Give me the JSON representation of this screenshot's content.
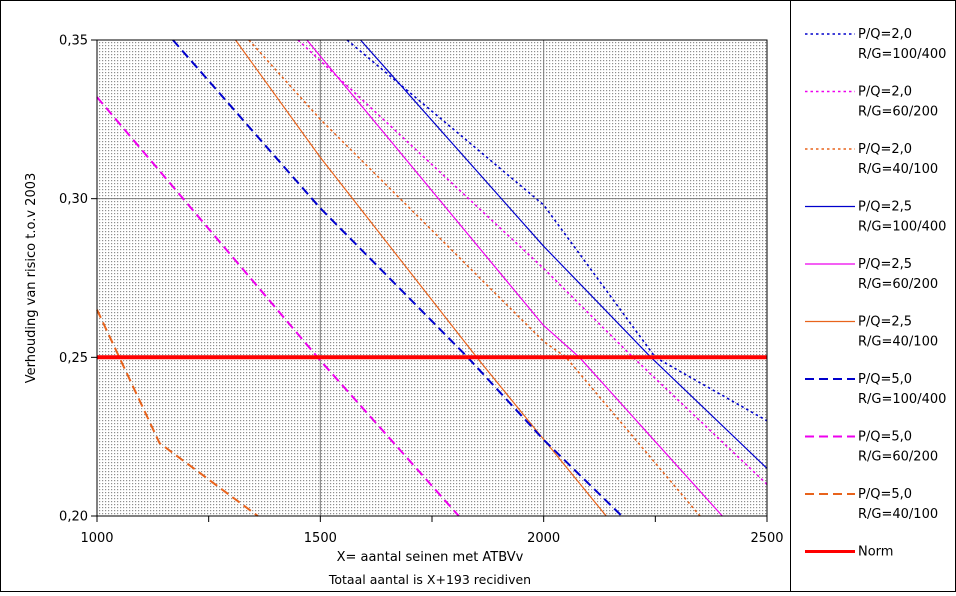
{
  "chart_data": {
    "type": "line",
    "ylabel": "Verhouding van risico t.o.v 2003",
    "xlabel": "X= aantal seinen met ATBVv",
    "xlabel2": "Totaal aantal is X+193 recidiven",
    "xlim": [
      1000,
      2500
    ],
    "ylim": [
      0.2,
      0.35
    ],
    "x_ticks": [
      "1000",
      "1500",
      "2000",
      "2500"
    ],
    "y_ticks": [
      "0,20",
      "0,25",
      "0,30",
      "0,35"
    ],
    "x_minor_ticks": [
      1250,
      1750,
      2250
    ],
    "grid": true,
    "plot_background": "#d9d9d9",
    "legend_position": "right",
    "series": [
      {
        "legend": [
          "P/Q=2,0",
          "R/G=100/400"
        ],
        "color": "#0000cc",
        "dash": "dot",
        "width": 1.6,
        "points": [
          [
            1560,
            0.35
          ],
          [
            2000,
            0.298
          ],
          [
            2250,
            0.25
          ],
          [
            2500,
            0.23
          ]
        ]
      },
      {
        "legend": [
          "P/Q=2,0",
          "R/G=60/200"
        ],
        "color": "#ee00ee",
        "dash": "dot",
        "width": 1.6,
        "points": [
          [
            1450,
            0.35
          ],
          [
            2000,
            0.278
          ],
          [
            2200,
            0.25
          ],
          [
            2500,
            0.21
          ]
        ]
      },
      {
        "legend": [
          "P/Q=2,0",
          "R/G=40/100"
        ],
        "color": "#e8631c",
        "dash": "dot",
        "width": 1.6,
        "points": [
          [
            1340,
            0.35
          ],
          [
            1500,
            0.325
          ],
          [
            2000,
            0.255
          ],
          [
            2050,
            0.25
          ],
          [
            2350,
            0.2
          ]
        ]
      },
      {
        "legend": [
          "P/Q=2,5",
          "R/G=100/400"
        ],
        "color": "#0000cc",
        "dash": "solid",
        "width": 1.2,
        "points": [
          [
            1590,
            0.35
          ],
          [
            2000,
            0.285
          ],
          [
            2240,
            0.25
          ],
          [
            2500,
            0.215
          ]
        ]
      },
      {
        "legend": [
          "P/Q=2,5",
          "R/G=60/200"
        ],
        "color": "#ee00ee",
        "dash": "solid",
        "width": 1.2,
        "points": [
          [
            1470,
            0.35
          ],
          [
            2000,
            0.26
          ],
          [
            2080,
            0.25
          ],
          [
            2400,
            0.2
          ]
        ]
      },
      {
        "legend": [
          "P/Q=2,5",
          "R/G=40/100"
        ],
        "color": "#e8631c",
        "dash": "solid",
        "width": 1.2,
        "points": [
          [
            1310,
            0.35
          ],
          [
            1500,
            0.313
          ],
          [
            1850,
            0.25
          ],
          [
            2140,
            0.2
          ]
        ]
      },
      {
        "legend": [
          "P/Q=5,0",
          "R/G=100/400"
        ],
        "color": "#0000cc",
        "dash": "dash",
        "width": 2,
        "points": [
          [
            1170,
            0.35
          ],
          [
            1500,
            0.297
          ],
          [
            1830,
            0.25
          ],
          [
            2000,
            0.224
          ],
          [
            2175,
            0.2
          ]
        ]
      },
      {
        "legend": [
          "P/Q=5,0",
          "R/G=60/200"
        ],
        "color": "#ee00ee",
        "dash": "dash",
        "width": 2,
        "points": [
          [
            1000,
            0.332
          ],
          [
            1500,
            0.249
          ],
          [
            1810,
            0.2
          ]
        ]
      },
      {
        "legend": [
          "P/Q=5,0",
          "R/G=40/100"
        ],
        "color": "#e8631c",
        "dash": "dash",
        "width": 2,
        "points": [
          [
            1000,
            0.265
          ],
          [
            1140,
            0.223
          ],
          [
            1360,
            0.2
          ]
        ]
      },
      {
        "legend": [
          "Norm"
        ],
        "color": "#ff0000",
        "dash": "solid",
        "width": 4,
        "points": [
          [
            1000,
            0.25
          ],
          [
            2500,
            0.25
          ]
        ]
      }
    ]
  }
}
